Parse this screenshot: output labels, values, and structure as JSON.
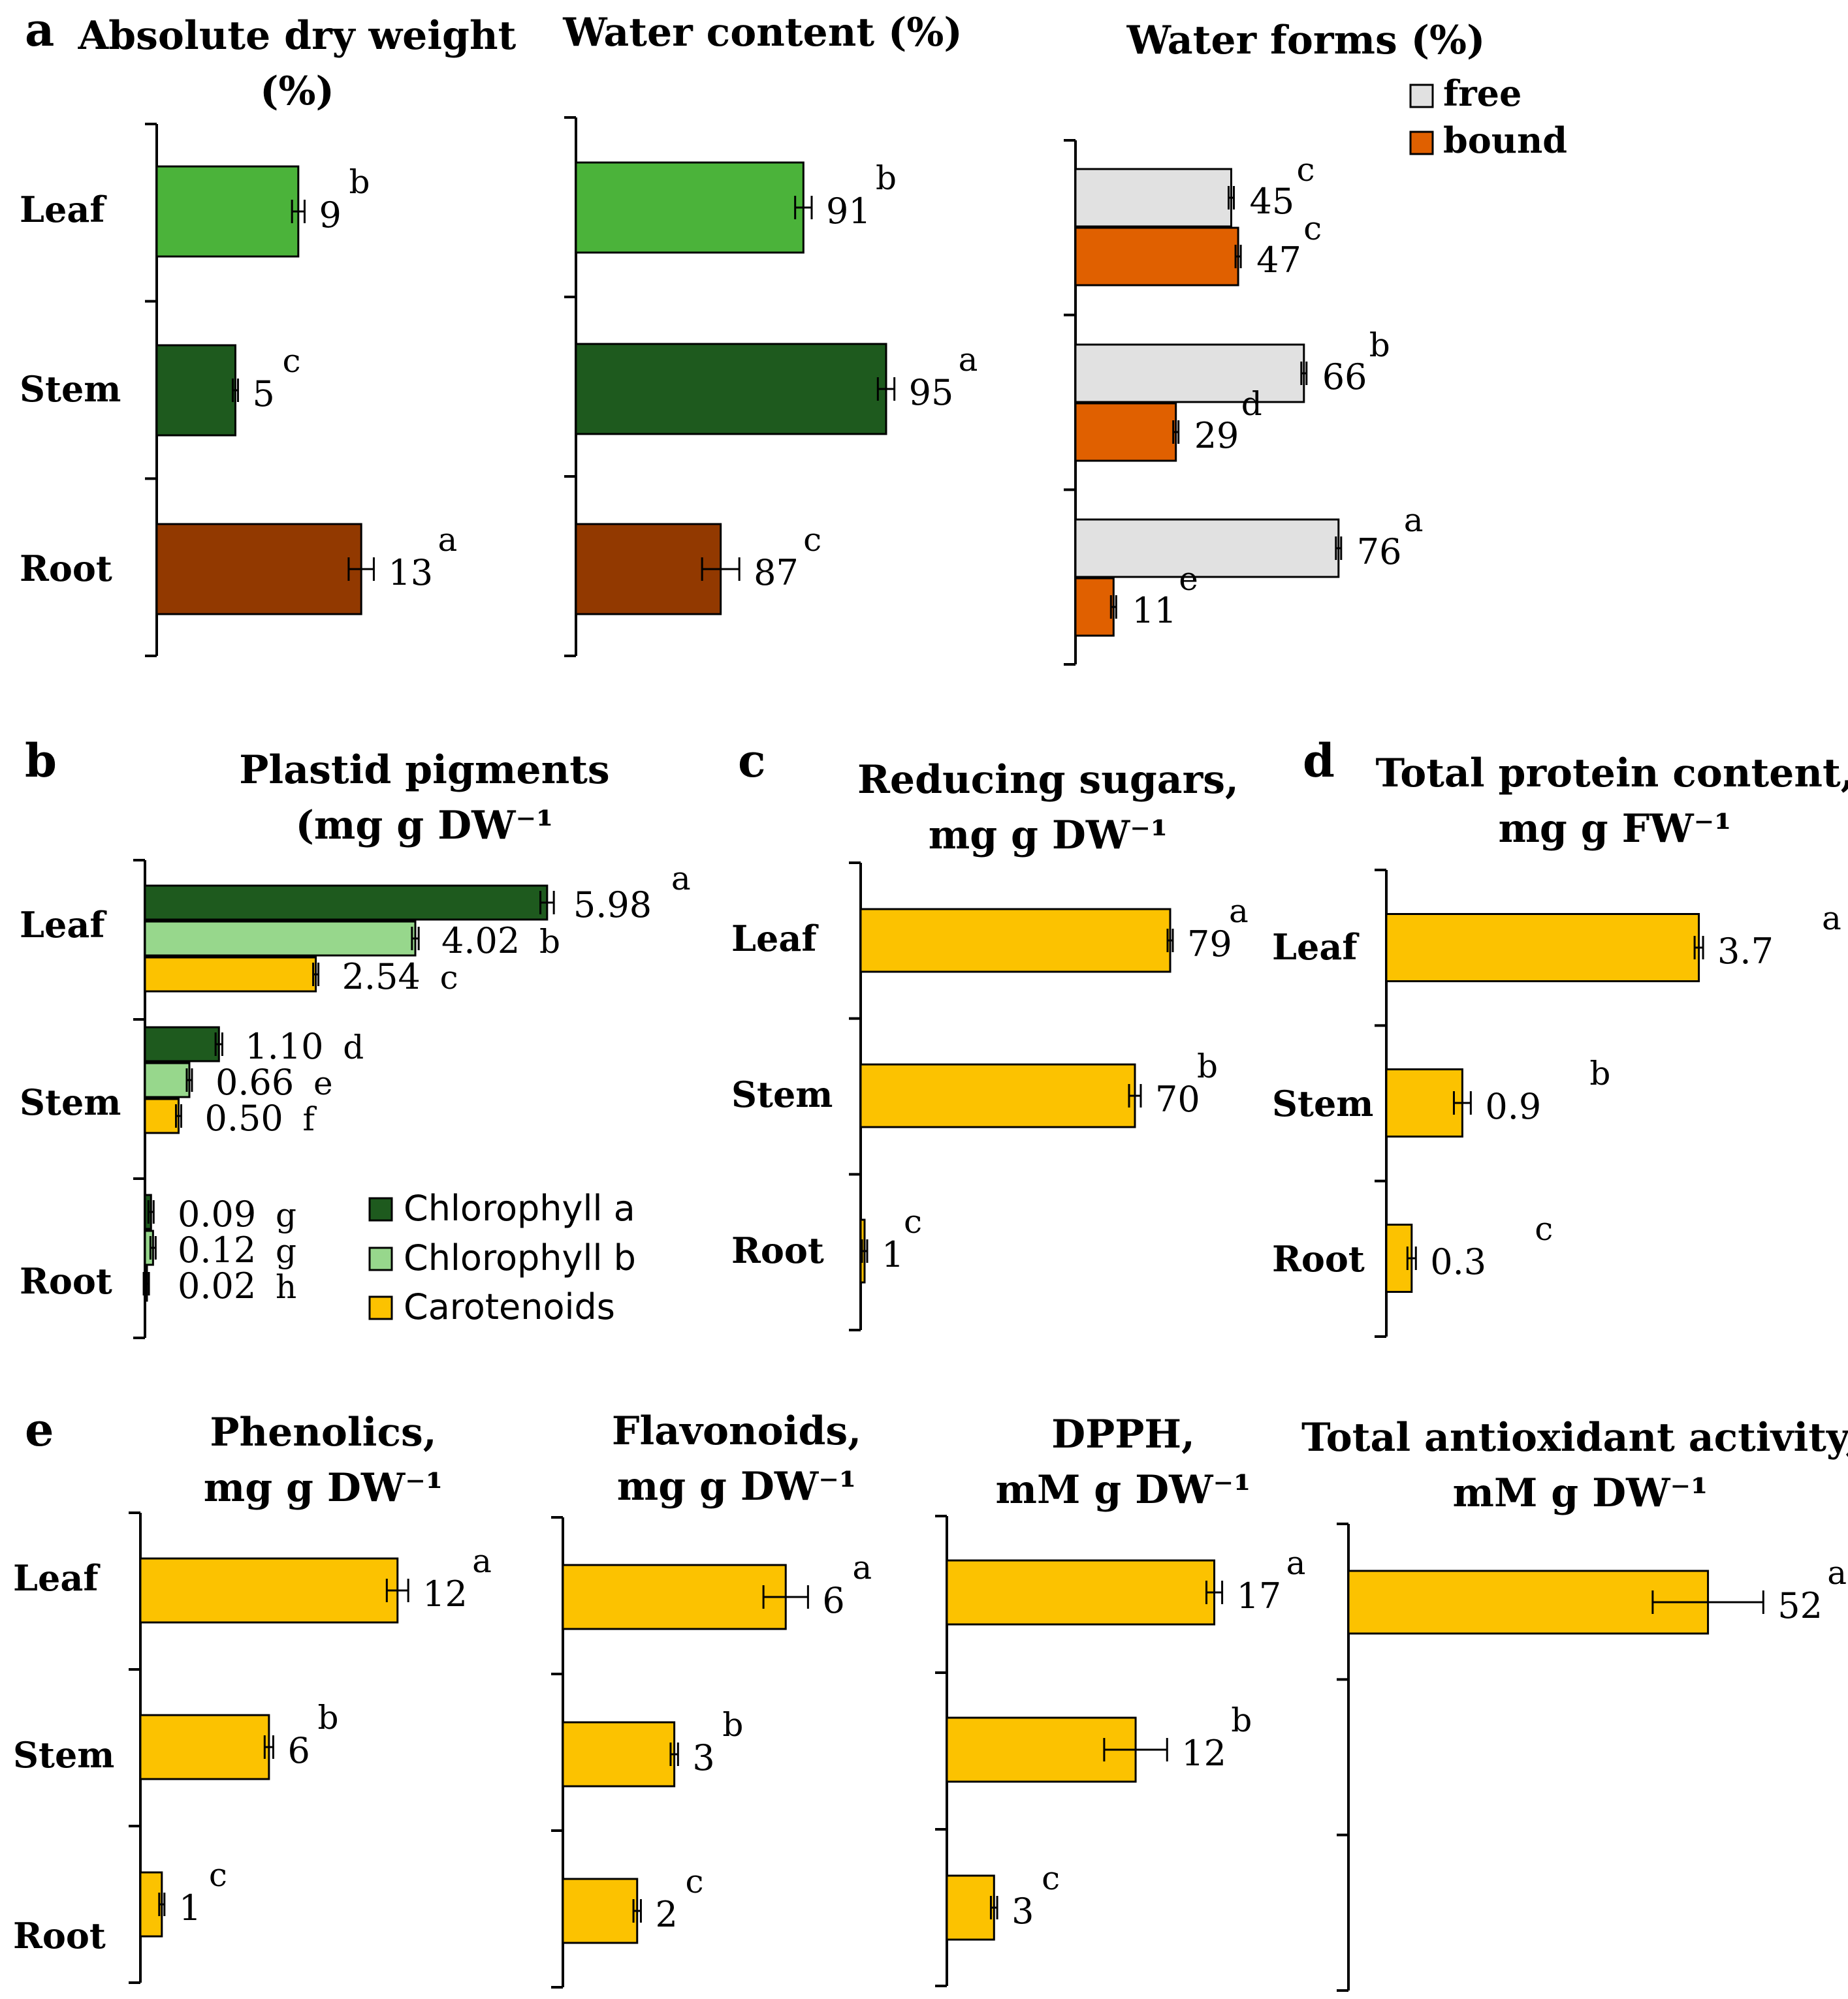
{
  "panel_labels": {
    "a": "a",
    "b": "b",
    "c": "c",
    "d": "d",
    "e": "e"
  },
  "categories": [
    "Leaf",
    "Stem",
    "Root"
  ],
  "colors": {
    "leaf_green": "#4bb33a",
    "stem_green": "#1e5a1e",
    "root_brown": "#923900",
    "free_gray": "#e1e1e1",
    "bound_orange": "#e06000",
    "light_green": "#97d78c",
    "yellow": "#fcc200"
  },
  "chart_data": [
    {
      "id": "dry_weight",
      "type": "bar",
      "orientation": "horizontal",
      "title": [
        "Absolute dry weight",
        "(%)"
      ],
      "categories": [
        "Leaf",
        "Stem",
        "Root"
      ],
      "values": [
        9,
        5,
        13
      ],
      "errors": [
        0.4,
        0.1,
        0.8
      ],
      "labels": [
        "9",
        "5",
        "13"
      ],
      "letters": [
        "b",
        "c",
        "a"
      ],
      "xlim": [
        0,
        22
      ]
    },
    {
      "id": "water_content",
      "type": "bar",
      "orientation": "horizontal",
      "title": [
        "Water content (%)"
      ],
      "categories": [
        "Leaf",
        "Stem",
        "Root"
      ],
      "values": [
        91,
        95,
        87
      ],
      "errors": [
        0.4,
        0.4,
        0.9
      ],
      "labels": [
        "91",
        "95",
        "87"
      ],
      "letters": [
        "b",
        "a",
        "c"
      ],
      "xlim": [
        80,
        98
      ]
    },
    {
      "id": "water_forms",
      "type": "bar",
      "orientation": "horizontal",
      "title": [
        "Water forms (%)"
      ],
      "categories": [
        "Leaf",
        "Stem",
        "Root"
      ],
      "legend": [
        "free",
        "bound"
      ],
      "series": [
        {
          "name": "free",
          "values": [
            45,
            66,
            76
          ],
          "errors": [
            0.3,
            0.3,
            0.3
          ],
          "labels": [
            "45",
            "66",
            "76"
          ],
          "letters": [
            "c",
            "b",
            "a"
          ]
        },
        {
          "name": "bound",
          "values": [
            47,
            29,
            11
          ],
          "errors": [
            0.3,
            0.3,
            0.3
          ],
          "labels": [
            "47",
            "29",
            "11"
          ],
          "letters": [
            "c",
            "d",
            "e"
          ]
        }
      ],
      "xlim": [
        0,
        100
      ]
    },
    {
      "id": "plastid_pigments",
      "type": "bar",
      "orientation": "horizontal",
      "title": [
        "Plastid pigments",
        "(mg g DW⁻¹"
      ],
      "categories": [
        "Leaf",
        "Stem",
        "Root"
      ],
      "legend": [
        "Chlorophyll a",
        "Chlorophyll b",
        "Carotenoids"
      ],
      "series": [
        {
          "name": "Chlorophyll a",
          "values": [
            5.98,
            1.1,
            0.09
          ],
          "errors": [
            0.1,
            0.05,
            0.01
          ],
          "labels": [
            "5.98",
            "1.10",
            "0.09"
          ],
          "letters": [
            "a",
            "d",
            "g"
          ]
        },
        {
          "name": "Chlorophyll b",
          "values": [
            4.02,
            0.66,
            0.12
          ],
          "errors": [
            0.05,
            0.03,
            0.01
          ],
          "labels": [
            "4.02",
            "0.66",
            "0.12"
          ],
          "letters": [
            "b",
            "e",
            "g"
          ]
        },
        {
          "name": "Carotenoids",
          "values": [
            2.54,
            0.5,
            0.02
          ],
          "errors": [
            0.03,
            0.02,
            0.005
          ],
          "labels": [
            "2.54",
            "0.50",
            "0.02"
          ],
          "letters": [
            "c",
            "f",
            "h"
          ]
        }
      ],
      "xlim": [
        0,
        6.7
      ]
    },
    {
      "id": "reducing_sugars",
      "type": "bar",
      "orientation": "horizontal",
      "title": [
        "Reducing sugars,",
        "mg g DW⁻¹"
      ],
      "categories": [
        "Leaf",
        "Stem",
        "Root"
      ],
      "values": [
        79,
        70,
        1
      ],
      "errors": [
        0.5,
        1.5,
        0.2
      ],
      "labels": [
        "79",
        "70",
        "1"
      ],
      "letters": [
        "a",
        "b",
        "c"
      ],
      "xlim": [
        0,
        100
      ]
    },
    {
      "id": "total_protein",
      "type": "bar",
      "orientation": "horizontal",
      "title": [
        "Total protein content,",
        "mg g FW⁻¹"
      ],
      "categories": [
        "Leaf",
        "Stem",
        "Root"
      ],
      "values": [
        3.7,
        0.9,
        0.3
      ],
      "errors": [
        0.05,
        0.1,
        0.05
      ],
      "labels": [
        "3.7",
        "0.9",
        "0.3"
      ],
      "letters": [
        "a",
        "b",
        "c"
      ],
      "xlim": [
        0,
        4.6
      ]
    },
    {
      "id": "phenolics",
      "type": "bar",
      "orientation": "horizontal",
      "title": [
        "Phenolics,",
        "mg g DW⁻¹"
      ],
      "categories": [
        "Leaf",
        "Stem",
        "Root"
      ],
      "values": [
        12,
        6,
        1
      ],
      "errors": [
        0.5,
        0.2,
        0.05
      ],
      "labels": [
        "12",
        "6",
        "1"
      ],
      "letters": [
        "a",
        "b",
        "c"
      ],
      "xlim": [
        0,
        16
      ]
    },
    {
      "id": "flavonoids",
      "type": "bar",
      "orientation": "horizontal",
      "title": [
        "Flavonoids,",
        "mg g DW⁻¹"
      ],
      "categories": [
        "Leaf",
        "Stem",
        "Root"
      ],
      "values": [
        6,
        3,
        2
      ],
      "errors": [
        0.6,
        0.1,
        0.1
      ],
      "labels": [
        "6",
        "3",
        "2"
      ],
      "letters": [
        "a",
        "b",
        "c"
      ],
      "xlim": [
        0,
        8
      ]
    },
    {
      "id": "dpph",
      "type": "bar",
      "orientation": "horizontal",
      "title": [
        "DPPH,",
        "mM g DW⁻¹"
      ],
      "categories": [
        "Leaf",
        "Stem",
        "Root"
      ],
      "values": [
        17,
        12,
        3
      ],
      "errors": [
        0.5,
        2,
        0.2
      ],
      "labels": [
        "17",
        "12",
        "3"
      ],
      "letters": [
        "a",
        "b",
        "c"
      ],
      "xlim": [
        0,
        22
      ]
    },
    {
      "id": "total_antioxidant",
      "type": "bar",
      "orientation": "horizontal",
      "title": [
        "Total antioxidant activity,",
        "mM g DW⁻¹"
      ],
      "categories": [],
      "values": [
        52
      ],
      "errors": [
        8
      ],
      "labels": [
        "52"
      ],
      "letters": [
        "a"
      ],
      "xlim": [
        0,
        68
      ]
    }
  ]
}
